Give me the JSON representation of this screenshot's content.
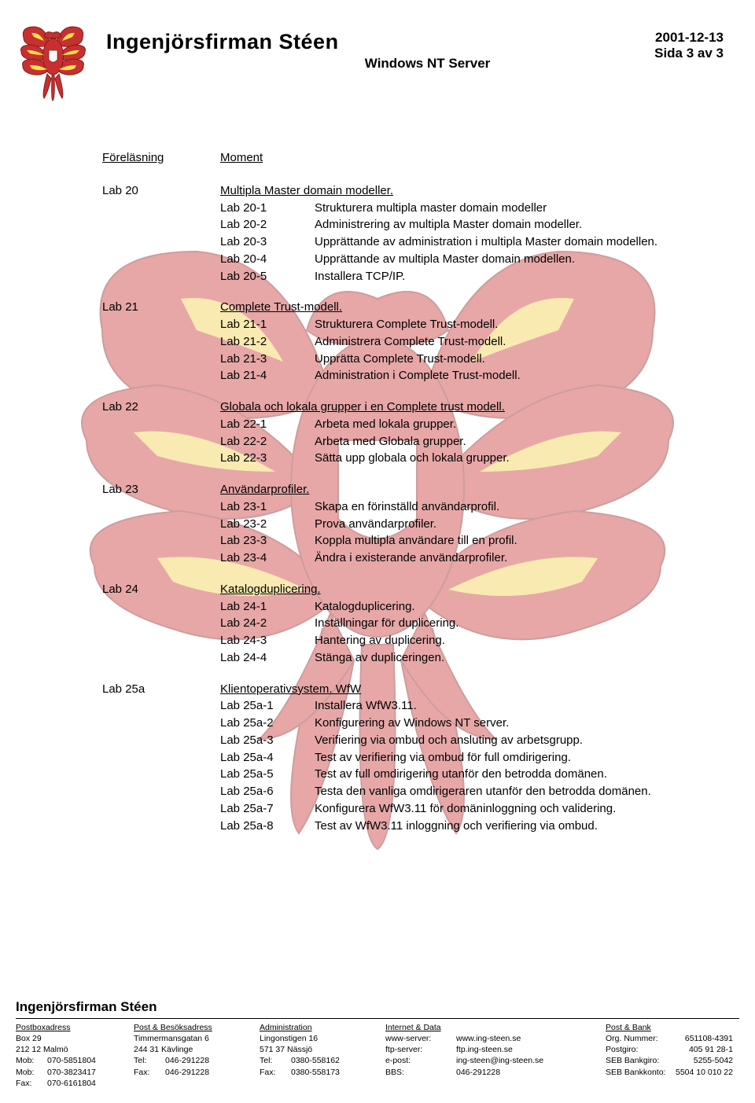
{
  "header": {
    "company": "Ingenjörsfirman Stéen",
    "subtitle": "Windows NT Server",
    "date": "2001-12-13",
    "page": "Sida 3 av 3"
  },
  "columns": {
    "c1": "Föreläsning",
    "c2": "Moment"
  },
  "labs": [
    {
      "id": "Lab 20",
      "title": "Multipla Master domain modeller.",
      "subs": [
        {
          "id": "Lab 20-1",
          "text": "Strukturera multipla master domain modeller"
        },
        {
          "id": "Lab 20-2",
          "text": "Administrering av multipla Master domain modeller."
        },
        {
          "id": "Lab 20-3",
          "text": "Upprättande av administration i multipla Master domain modellen."
        },
        {
          "id": "Lab 20-4",
          "text": "Upprättande av multipla Master domain modellen."
        },
        {
          "id": "Lab 20-5",
          "text": "Installera TCP/IP."
        }
      ]
    },
    {
      "id": "Lab 21",
      "title": "Complete Trust-modell.",
      "subs": [
        {
          "id": "Lab 21-1",
          "text": "Strukturera Complete Trust-modell."
        },
        {
          "id": "Lab 21-2",
          "text": "Administrera Complete Trust-modell."
        },
        {
          "id": "Lab 21-3",
          "text": "Upprätta Complete Trust-modell."
        },
        {
          "id": "Lab 21-4",
          "text": "Administration i Complete Trust-modell."
        }
      ]
    },
    {
      "id": "Lab 22",
      "title": "Globala och lokala grupper i en Complete trust modell.",
      "subs": [
        {
          "id": "Lab 22-1",
          "text": "Arbeta med lokala grupper."
        },
        {
          "id": "Lab 22-2",
          "text": "Arbeta med Globala grupper."
        },
        {
          "id": "Lab 22-3",
          "text": "Sätta upp globala och lokala grupper."
        }
      ]
    },
    {
      "id": "Lab 23",
      "title": "Användarprofiler.",
      "subs": [
        {
          "id": "Lab 23-1",
          "text": "Skapa en förinställd användarprofil."
        },
        {
          "id": "Lab 23-2",
          "text": "Prova användarprofiler."
        },
        {
          "id": "Lab 23-3",
          "text": "Koppla multipla användare till en profil."
        },
        {
          "id": "Lab 23-4",
          "text": "Ändra i existerande användarprofiler."
        }
      ]
    },
    {
      "id": "Lab 24",
      "title": "Katalogduplicering.",
      "subs": [
        {
          "id": "Lab 24-1",
          "text": "Katalogduplicering."
        },
        {
          "id": "Lab 24-2",
          "text": "Inställningar för duplicering."
        },
        {
          "id": "Lab 24-3",
          "text": "Hantering av duplicering."
        },
        {
          "id": "Lab 24-4",
          "text": "Stänga av dupliceringen."
        }
      ]
    },
    {
      "id": "Lab 25a",
      "title": "Klientoperativsystem. WfW",
      "subs": [
        {
          "id": "Lab 25a-1",
          "text": "Installera WfW3.11."
        },
        {
          "id": "Lab 25a-2",
          "text": "Konfigurering av Windows NT server."
        },
        {
          "id": "Lab 25a-3",
          "text": "Verifiering via ombud och ansluting av arbetsgrupp."
        },
        {
          "id": "Lab 25a-4",
          "text": "Test av verifiering via ombud för full omdirigering."
        },
        {
          "id": "Lab 25a-5",
          "text": "Test av full omdirigering utanför den betrodda domänen."
        },
        {
          "id": "Lab 25a-6",
          "text": "Testa den vanliga omdirigeraren utanför den betrodda domänen."
        },
        {
          "id": "Lab 25a-7",
          "text": "Konfigurera WfW3.11 för domäninloggning och validering."
        },
        {
          "id": "Lab 25a-8",
          "text": "Test av WfW3.11 inloggning och verifiering via ombud."
        }
      ]
    }
  ],
  "footer": {
    "company": "Ingenjörsfirman Stéen",
    "col1": {
      "head": "Postboxadress",
      "l1": "Box 29",
      "l2": "212 12 Malmö",
      "rows": [
        {
          "lab": "Mob:",
          "val": "070-5851804"
        },
        {
          "lab": "Mob:",
          "val": "070-3823417"
        },
        {
          "lab": "Fax:",
          "val": "070-6161804"
        }
      ]
    },
    "col2": {
      "head": "Post & Besöksadress",
      "l1": "Timmermansgatan 6",
      "l2": "244 31 Kävlinge",
      "rows": [
        {
          "lab": "Tel:",
          "val": "046-291228"
        },
        {
          "lab": "Fax:",
          "val": "046-291228"
        }
      ]
    },
    "col3": {
      "head": "Administration",
      "l1": "Lingonstigen 16",
      "l2": "571 37 Nässjö",
      "rows": [
        {
          "lab": "Tel:",
          "val": "0380-558162"
        },
        {
          "lab": "Fax:",
          "val": "0380-558173"
        }
      ]
    },
    "col4": {
      "head": "Internet & Data",
      "rows": [
        {
          "lab": "www-server:",
          "val": "www.ing-steen.se"
        },
        {
          "lab": "ftp-server:",
          "val": "ftp.ing-steen.se"
        },
        {
          "lab": "e-post:",
          "val": "ing-steen@ing-steen.se"
        },
        {
          "lab": "BBS:",
          "val": "046-291228"
        }
      ]
    },
    "col5": {
      "head": "Post & Bank",
      "rows": [
        {
          "lab": "Org. Nummer:",
          "val": "651108-4391"
        },
        {
          "lab": "",
          "val": ""
        },
        {
          "lab": "Postgiro:",
          "val": "405 91 28-1"
        },
        {
          "lab": "SEB Bankgiro:",
          "val": "5255-5042"
        },
        {
          "lab": "SEB Bankkonto:",
          "val": "5504 10 010 22"
        }
      ]
    }
  },
  "colors": {
    "eagle_body": "#c73030",
    "eagle_shadow": "#8a1818",
    "flame": "#f7e04a",
    "whitefill": "#ffffff"
  }
}
